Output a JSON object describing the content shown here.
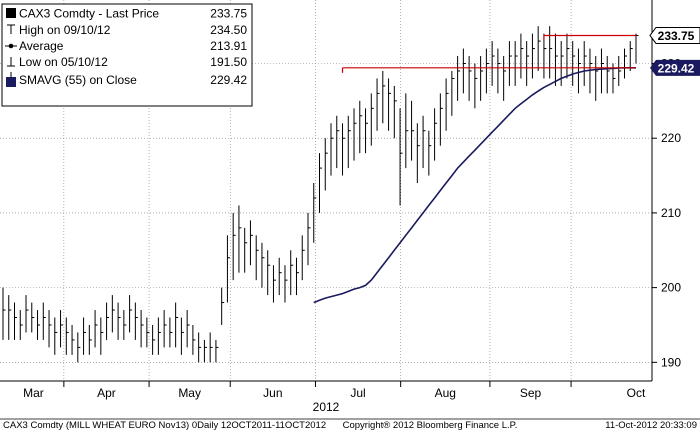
{
  "chart_data": {
    "type": "line",
    "ylim": [
      187.5,
      238.5
    ],
    "yticks": [
      190,
      200,
      210,
      220,
      230
    ],
    "months": [
      "Mar",
      "Apr",
      "May",
      "Jun",
      "Jul",
      "Aug",
      "Sep",
      "Oct"
    ],
    "year_label": "2012",
    "legend": {
      "title": "CAX3 Comdty - Last Price",
      "title_value": "233.75",
      "items": [
        {
          "label": "High on 09/10/12",
          "value": "234.50"
        },
        {
          "label": "Average",
          "value": "213.91"
        },
        {
          "label": "Low on 05/10/12",
          "value": "191.50"
        },
        {
          "label": "SMAVG (55) on Close",
          "value": "229.42"
        }
      ]
    },
    "reference_lines": [
      {
        "value": 233.75,
        "label": "233.75",
        "color": "#cc0000"
      },
      {
        "value": 229.42,
        "label": "229.42",
        "color": "#cc0000"
      }
    ],
    "last_price_tag": {
      "text": "233.75",
      "bg": "#ffffff",
      "fg": "#000000"
    },
    "sma_tag": {
      "text": "229.42",
      "bg": "#1a1a5e",
      "fg": "#ffffff"
    },
    "footer": {
      "left": "CAX3 Comdty (MILL WHEAT EURO   Nov13) 0Daily 12OCT2011-11OCT2012",
      "center": "Copyright® 2012 Bloomberg Finance L.P.",
      "right": "11-Oct-2012 20:33:09"
    },
    "colors": {
      "price_bars": "#000000",
      "sma_line": "#1a1a5e",
      "reference": "#cc0000",
      "grid": "#808080"
    },
    "price_series": {
      "name": "Last Price",
      "high": [
        200,
        199,
        198,
        197,
        199,
        198,
        197,
        198,
        197,
        196,
        197,
        196,
        195,
        194,
        196,
        195,
        197,
        196,
        198,
        199,
        198,
        197,
        199,
        198,
        197,
        196,
        195,
        196,
        197,
        196,
        198,
        196,
        197,
        195,
        194,
        193,
        194,
        193,
        200,
        207,
        210,
        211,
        208,
        209,
        207,
        206,
        205,
        203,
        204,
        203,
        205,
        204,
        207,
        210,
        214,
        218,
        220,
        222,
        223,
        222,
        223,
        224,
        225,
        224,
        226,
        228,
        229,
        228,
        227,
        224,
        226,
        225,
        222,
        223,
        221,
        224,
        226,
        228,
        229,
        231,
        232,
        231,
        230,
        231,
        232,
        233,
        232,
        231,
        233,
        233,
        234,
        233,
        234,
        235,
        234,
        235,
        234,
        233,
        234,
        233,
        232,
        233,
        232,
        231,
        232,
        231,
        230,
        231,
        232,
        233,
        234
      ],
      "low": [
        193,
        193,
        193,
        193,
        194,
        194,
        193,
        193,
        192,
        191,
        192,
        191,
        191,
        190,
        191,
        191,
        192,
        191,
        193,
        194,
        193,
        193,
        194,
        193,
        192,
        192,
        191,
        191,
        192,
        192,
        192,
        191,
        192,
        191,
        190,
        190,
        190,
        190,
        195,
        198,
        201,
        202,
        202,
        203,
        201,
        200,
        199,
        198,
        199,
        198,
        199,
        199,
        201,
        203,
        206,
        210,
        213,
        215,
        216,
        215,
        216,
        217,
        218,
        218,
        219,
        221,
        222,
        221,
        220,
        211,
        216,
        217,
        214,
        216,
        215,
        217,
        219,
        221,
        223,
        225,
        226,
        225,
        224,
        225,
        226,
        227,
        226,
        225,
        227,
        227,
        228,
        227,
        228,
        229,
        228,
        228,
        227,
        227,
        228,
        227,
        226,
        227,
        226,
        225,
        226,
        226,
        226,
        227,
        228,
        229,
        230
      ],
      "close": [
        197,
        197,
        196,
        195,
        197,
        196,
        195,
        196,
        195,
        194,
        195,
        194,
        193,
        192,
        194,
        193,
        195,
        194,
        196,
        197,
        196,
        195,
        197,
        196,
        195,
        194,
        193,
        194,
        195,
        194,
        196,
        194,
        195,
        193,
        192,
        192,
        192,
        192,
        198,
        204,
        207,
        208,
        206,
        207,
        205,
        204,
        203,
        201,
        202,
        201,
        203,
        202,
        205,
        208,
        212,
        216,
        218,
        220,
        221,
        220,
        221,
        222,
        223,
        222,
        224,
        226,
        227,
        226,
        225,
        218,
        221,
        221,
        219,
        221,
        219,
        222,
        224,
        226,
        228,
        229,
        230,
        229,
        228,
        229,
        230,
        231,
        230,
        229,
        231,
        231,
        232,
        231,
        232,
        233,
        232,
        232,
        231,
        231,
        232,
        231,
        230,
        231,
        230,
        229,
        230,
        229,
        228,
        229,
        231,
        232,
        233.75
      ]
    },
    "sma_series": {
      "name": "SMAVG (55)",
      "start_index": 54,
      "values": [
        198,
        198.3,
        198.6,
        198.8,
        199,
        199.2,
        199.5,
        199.8,
        200,
        200.3,
        201,
        202,
        203,
        204,
        205,
        206,
        207,
        208,
        209,
        210,
        211,
        212,
        213,
        214,
        215,
        216,
        216.8,
        217.6,
        218.4,
        219.2,
        220,
        220.8,
        221.6,
        222.4,
        223.2,
        224,
        224.6,
        225.2,
        225.8,
        226.3,
        226.8,
        227.2,
        227.6,
        228,
        228.3,
        228.6,
        228.8,
        229,
        229.1,
        229.2,
        229.25,
        229.3,
        229.35,
        229.4,
        229.42,
        229.42,
        229.42
      ]
    }
  }
}
